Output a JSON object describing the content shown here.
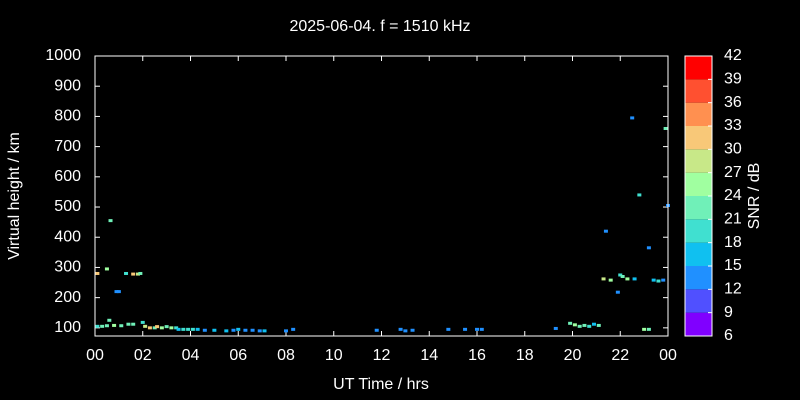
{
  "chart_data": {
    "type": "scatter",
    "title": "2025-06-04. f = 1510 kHz",
    "x_label": "UT Time / hrs",
    "y_label": "Virtual height / km",
    "colorbar_label": "SNR / dB",
    "xlim": [
      0,
      24
    ],
    "xticks": [
      {
        "value": 0,
        "label": "00"
      },
      {
        "value": 2,
        "label": "02"
      },
      {
        "value": 4,
        "label": "04"
      },
      {
        "value": 6,
        "label": "06"
      },
      {
        "value": 8,
        "label": "08"
      },
      10,
      12,
      14,
      16,
      18,
      20,
      22,
      {
        "value": 24,
        "label": "00"
      }
    ],
    "ylim": [
      73,
      1000
    ],
    "yticks": [
      100,
      200,
      300,
      400,
      500,
      600,
      700,
      800,
      900,
      1000
    ],
    "clim": [
      6,
      42
    ],
    "cticks": [
      6,
      9,
      12,
      15,
      18,
      21,
      24,
      27,
      30,
      33,
      36,
      39,
      42
    ],
    "colormap": [
      "#8000ff",
      "#5050ff",
      "#2090ff",
      "#10c0f0",
      "#40e0d0",
      "#70f0b8",
      "#a0ffa0",
      "#c8e888",
      "#f8c878",
      "#ff9050",
      "#ff5030",
      "#ff0000"
    ],
    "x": [
      0.1,
      0.1,
      0.3,
      0.5,
      0.5,
      0.6,
      0.65,
      0.8,
      0.9,
      1.0,
      1.1,
      1.3,
      1.4,
      1.6,
      1.6,
      1.8,
      1.9,
      2.0,
      2.1,
      2.3,
      2.5,
      2.6,
      2.8,
      3.0,
      3.2,
      3.4,
      3.5,
      3.7,
      3.9,
      4.1,
      4.3,
      4.6,
      5.0,
      5.5,
      5.8,
      6.0,
      6.3,
      6.6,
      6.9,
      7.1,
      8.0,
      8.3,
      11.8,
      12.8,
      13.0,
      13.3,
      14.8,
      15.5,
      16.0,
      16.2,
      19.3,
      19.9,
      20.1,
      20.3,
      20.5,
      20.7,
      20.9,
      21.1,
      21.3,
      21.4,
      21.6,
      21.9,
      22.0,
      22.1,
      22.3,
      22.5,
      22.6,
      22.8,
      23.0,
      23.2,
      23.2,
      23.4,
      23.6,
      23.8,
      23.9,
      24.0
    ],
    "y": [
      280,
      105,
      105,
      107,
      295,
      125,
      455,
      108,
      220,
      220,
      107,
      280,
      112,
      112,
      278,
      278,
      280,
      118,
      105,
      100,
      100,
      104,
      100,
      104,
      100,
      100,
      95,
      95,
      95,
      95,
      95,
      92,
      92,
      90,
      92,
      95,
      92,
      92,
      90,
      90,
      90,
      95,
      92,
      95,
      90,
      92,
      95,
      95,
      95,
      95,
      98,
      115,
      110,
      105,
      108,
      105,
      112,
      108,
      262,
      420,
      258,
      218,
      275,
      270,
      262,
      795,
      262,
      540,
      95,
      95,
      365,
      258,
      255,
      258,
      760,
      505
    ],
    "snr": [
      30,
      18,
      21,
      21,
      24,
      21,
      21,
      24,
      14,
      14,
      21,
      18,
      21,
      21,
      30,
      27,
      21,
      18,
      27,
      30,
      21,
      30,
      24,
      21,
      24,
      18,
      15,
      18,
      18,
      18,
      15,
      12,
      15,
      15,
      12,
      15,
      12,
      12,
      12,
      15,
      12,
      14,
      12,
      12,
      12,
      12,
      12,
      13,
      13,
      13,
      12,
      21,
      24,
      21,
      21,
      18,
      15,
      21,
      27,
      14,
      24,
      13,
      18,
      21,
      24,
      13,
      15,
      18,
      24,
      21,
      13,
      15,
      18,
      13,
      21,
      14
    ]
  }
}
